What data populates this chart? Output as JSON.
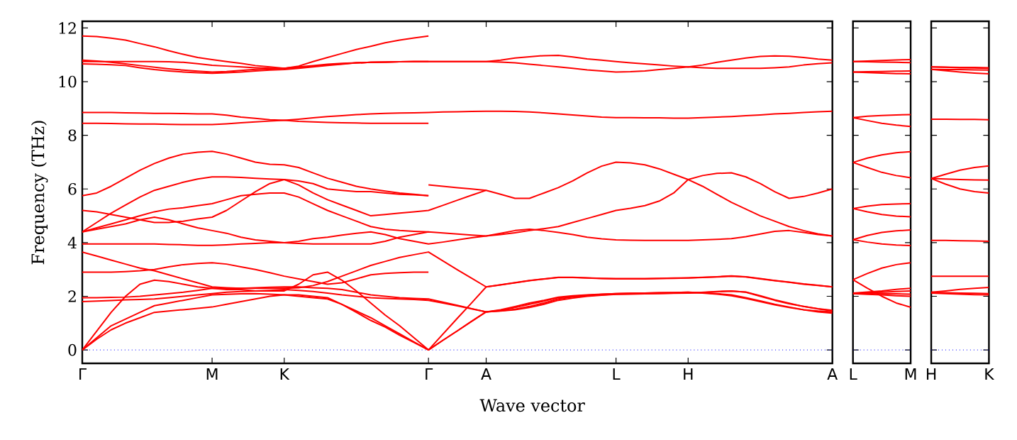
{
  "chart_data": [
    {
      "type": "line",
      "xlabel": "Wave vector",
      "ylabel": "Frequency (THz)",
      "ylim": [
        -0.5,
        12.25
      ],
      "categories": [
        "Γ",
        null,
        null,
        null,
        null,
        null,
        null,
        null,
        null,
        "M",
        null,
        null,
        null,
        null,
        "K",
        null,
        null,
        null,
        null,
        null,
        null,
        null,
        null,
        null,
        "Γ",
        null,
        null,
        null,
        "A",
        null,
        null,
        null,
        null,
        null,
        null,
        null,
        null,
        "L",
        null,
        null,
        null,
        null,
        "H",
        null,
        null,
        null,
        null,
        null,
        null,
        null,
        null,
        null,
        "A"
      ],
      "yticks": [
        0,
        2,
        4,
        6,
        8,
        10,
        12
      ],
      "ref_lines": [
        {
          "axis": "y",
          "value": 0,
          "color": "#0000ff",
          "line_style": "dotted"
        }
      ],
      "series": [
        {
          "color": "#ff0000",
          "values": [
            0,
            0.4,
            0.75,
            1.0,
            1.2,
            1.4,
            1.45,
            1.5,
            1.55,
            1.6,
            1.7,
            1.8,
            1.9,
            2.0,
            2.05,
            2.05,
            2.0,
            1.95,
            1.7,
            1.4,
            1.1,
            0.85,
            0.55,
            0.28,
            0,
            0.36,
            0.71,
            1.07,
            1.42,
            1.5,
            1.62,
            1.75,
            1.85,
            1.97,
            2.02,
            2.05,
            2.08,
            2.1,
            2.11,
            2.12,
            2.13,
            2.14,
            2.15,
            2.12,
            2.08,
            2.02,
            1.92,
            1.8,
            1.68,
            1.58,
            1.5,
            1.45,
            1.42
          ]
        },
        {
          "color": "#ff0000",
          "values": [
            0,
            0.45,
            0.9,
            1.15,
            1.4,
            1.65,
            1.75,
            1.85,
            1.95,
            2.05,
            2.07,
            2.09,
            2.1,
            2.08,
            2.05,
            2.0,
            1.95,
            1.9,
            1.7,
            1.45,
            1.2,
            0.9,
            0.6,
            0.3,
            0,
            0.36,
            0.71,
            1.07,
            1.42,
            1.46,
            1.52,
            1.62,
            1.75,
            1.9,
            1.97,
            2.02,
            2.05,
            2.08,
            2.09,
            2.1,
            2.11,
            2.12,
            2.12,
            2.15,
            2.18,
            2.2,
            2.15,
            2.0,
            1.85,
            1.72,
            1.62,
            1.53,
            1.46
          ]
        },
        {
          "color": "#ff0000",
          "values": [
            0,
            0.7,
            1.4,
            2.0,
            2.45,
            2.6,
            2.55,
            2.45,
            2.35,
            2.3,
            2.25,
            2.25,
            2.2,
            2.2,
            2.2,
            2.45,
            2.8,
            2.9,
            2.6,
            2.2,
            1.75,
            1.3,
            0.9,
            0.45,
            0,
            0.59,
            1.18,
            1.76,
            2.35,
            2.42,
            2.5,
            2.58,
            2.64,
            2.7,
            2.7,
            2.68,
            2.66,
            2.65,
            2.65,
            2.65,
            2.66,
            2.67,
            2.68,
            2.7,
            2.72,
            2.75,
            2.72,
            2.65,
            2.58,
            2.52,
            2.45,
            2.4,
            2.35
          ]
        },
        {
          "color": "#ff0000",
          "values": [
            1.8,
            1.82,
            1.84,
            1.87,
            1.88,
            1.9,
            1.95,
            2.0,
            2.05,
            2.1,
            2.15,
            2.18,
            2.2,
            2.22,
            2.25,
            2.22,
            2.18,
            2.12,
            2.05,
            2.0,
            1.95,
            1.92,
            1.9,
            1.88,
            1.85,
            1.75,
            1.64,
            1.53,
            1.42,
            1.45,
            1.5,
            1.58,
            1.7,
            1.85,
            1.93,
            2.0,
            2.04,
            2.07,
            2.08,
            2.09,
            2.1,
            2.11,
            2.12,
            2.14,
            2.17,
            2.19,
            2.16,
            2.02,
            1.87,
            1.74,
            1.62,
            1.54,
            1.48
          ]
        },
        {
          "color": "#ff0000",
          "values": [
            1.95,
            1.95,
            1.96,
            1.97,
            2.0,
            2.05,
            2.1,
            2.15,
            2.22,
            2.3,
            2.3,
            2.3,
            2.32,
            2.34,
            2.35,
            2.35,
            2.32,
            2.3,
            2.25,
            2.15,
            2.05,
            2.0,
            1.95,
            1.92,
            1.9,
            1.78,
            1.66,
            1.54,
            1.42,
            1.48,
            1.58,
            1.7,
            1.82,
            1.95,
            2.0,
            2.04,
            2.07,
            2.1,
            2.11,
            2.12,
            2.13,
            2.14,
            2.15,
            2.13,
            2.1,
            2.05,
            1.95,
            1.83,
            1.7,
            1.6,
            1.5,
            1.42,
            1.37
          ]
        },
        {
          "color": "#ff0000",
          "values": [
            2.9,
            2.9,
            2.9,
            2.92,
            2.95,
            3.0,
            3.1,
            3.18,
            3.22,
            3.25,
            3.2,
            3.1,
            3.0,
            2.88,
            2.75,
            2.65,
            2.55,
            2.45,
            2.5,
            2.65,
            2.8,
            2.85,
            2.88,
            2.9,
            2.9,
            null,
            null,
            null,
            null,
            null,
            null,
            null,
            null,
            null,
            null,
            null,
            null,
            null,
            null,
            null,
            null,
            null,
            null,
            null,
            null,
            null,
            null,
            null,
            null,
            null,
            null,
            null,
            null
          ]
        },
        {
          "color": "#ff0000",
          "values": [
            3.65,
            3.5,
            3.35,
            3.2,
            3.05,
            2.95,
            2.8,
            2.65,
            2.5,
            2.35,
            2.32,
            2.3,
            2.3,
            2.3,
            2.3,
            2.32,
            2.4,
            2.55,
            2.75,
            2.95,
            3.15,
            3.3,
            3.45,
            3.55,
            3.65,
            3.32,
            2.99,
            2.67,
            2.35,
            2.43,
            2.51,
            2.59,
            2.65,
            2.71,
            2.71,
            2.69,
            2.67,
            2.66,
            2.66,
            2.66,
            2.67,
            2.68,
            2.69,
            2.71,
            2.73,
            2.76,
            2.73,
            2.66,
            2.59,
            2.53,
            2.46,
            2.41,
            2.35
          ]
        },
        {
          "color": "#ff0000",
          "values": [
            3.95,
            3.95,
            3.95,
            3.95,
            3.95,
            3.95,
            3.93,
            3.92,
            3.9,
            3.9,
            3.92,
            3.95,
            3.97,
            4.0,
            4.0,
            4.05,
            4.15,
            4.2,
            4.28,
            4.35,
            4.4,
            4.3,
            4.15,
            4.05,
            3.95,
            4.02,
            4.1,
            4.18,
            4.25,
            4.35,
            4.45,
            4.5,
            4.45,
            4.38,
            4.3,
            4.2,
            4.14,
            4.1,
            4.09,
            4.08,
            4.08,
            4.08,
            4.08,
            4.1,
            4.12,
            4.15,
            4.22,
            4.32,
            4.42,
            4.45,
            4.38,
            4.3,
            4.25
          ]
        },
        {
          "color": "#ff0000",
          "values": [
            4.4,
            4.5,
            4.6,
            4.7,
            4.85,
            4.95,
            4.85,
            4.7,
            4.55,
            4.45,
            4.35,
            4.2,
            4.1,
            4.05,
            4.0,
            3.97,
            3.95,
            3.95,
            3.95,
            3.95,
            3.95,
            4.05,
            4.2,
            4.3,
            4.4,
            4.36,
            4.32,
            4.28,
            4.25,
            4.3,
            4.37,
            4.45,
            4.52,
            4.6,
            4.75,
            4.9,
            5.05,
            5.2,
            5.28,
            5.38,
            5.55,
            5.85,
            6.35,
            6.5,
            6.58,
            6.6,
            6.45,
            6.2,
            5.9,
            5.65,
            5.72,
            5.85,
            6.0
          ]
        },
        {
          "color": "#ff0000",
          "values": [
            4.4,
            4.55,
            4.7,
            4.85,
            5.0,
            5.15,
            5.25,
            5.3,
            5.38,
            5.45,
            5.6,
            5.75,
            5.8,
            5.85,
            5.85,
            5.7,
            5.45,
            5.2,
            5.0,
            4.8,
            4.6,
            4.5,
            4.45,
            4.42,
            4.4,
            null,
            null,
            null,
            null,
            null,
            null,
            null,
            null,
            null,
            null,
            null,
            null,
            null,
            null,
            null,
            null,
            null,
            null,
            null,
            null,
            null,
            null,
            null,
            null,
            null,
            null,
            null,
            null
          ]
        },
        {
          "color": "#ff0000",
          "values": [
            5.2,
            5.15,
            5.05,
            4.95,
            4.85,
            4.75,
            4.75,
            4.8,
            4.88,
            4.95,
            5.2,
            5.55,
            5.9,
            6.2,
            6.35,
            6.15,
            5.85,
            5.6,
            5.4,
            5.2,
            5.0,
            5.05,
            5.1,
            5.15,
            5.2,
            5.39,
            5.58,
            5.77,
            5.95,
            5.8,
            5.65,
            5.65,
            5.85,
            6.05,
            6.3,
            6.6,
            6.85,
            7.0,
            6.97,
            6.9,
            6.75,
            6.55,
            6.35,
            6.1,
            5.8,
            5.5,
            5.25,
            5.0,
            4.8,
            4.6,
            4.45,
            4.33,
            4.25
          ]
        },
        {
          "color": "#ff0000",
          "values": [
            4.4,
            4.75,
            5.1,
            5.4,
            5.7,
            5.95,
            6.1,
            6.25,
            6.37,
            6.45,
            6.45,
            6.43,
            6.4,
            6.37,
            6.35,
            6.3,
            6.2,
            6.0,
            5.95,
            5.9,
            5.9,
            5.85,
            5.8,
            5.78,
            5.75,
            null,
            null,
            null,
            null,
            null,
            null,
            null,
            null,
            null,
            null,
            null,
            null,
            null,
            null,
            null,
            null,
            null,
            null,
            null,
            null,
            null,
            null,
            null,
            null,
            null,
            null,
            null,
            null
          ]
        },
        {
          "color": "#ff0000",
          "values": [
            5.75,
            5.85,
            6.1,
            6.4,
            6.7,
            6.95,
            7.15,
            7.3,
            7.37,
            7.4,
            7.3,
            7.15,
            7.0,
            6.92,
            6.9,
            6.8,
            6.6,
            6.4,
            6.25,
            6.1,
            6.0,
            5.92,
            5.85,
            5.8,
            5.75,
            null,
            null,
            null,
            null,
            null,
            null,
            null,
            null,
            null,
            null,
            null,
            null,
            null,
            null,
            null,
            null,
            null,
            null,
            null,
            null,
            null,
            null,
            null,
            null,
            null,
            null,
            null,
            null
          ]
        },
        {
          "color": "#ff0000",
          "values": [
            null,
            null,
            null,
            null,
            null,
            null,
            null,
            null,
            null,
            null,
            null,
            null,
            null,
            null,
            null,
            null,
            null,
            null,
            null,
            null,
            null,
            null,
            null,
            null,
            6.15,
            6.1,
            6.05,
            6.0,
            5.95,
            null,
            null,
            null,
            null,
            null,
            null,
            null,
            null,
            null,
            null,
            null,
            null,
            null,
            null,
            null,
            null,
            null,
            null,
            null,
            null,
            null,
            null,
            null,
            null
          ]
        },
        {
          "color": "#ff0000",
          "values": [
            8.45,
            8.45,
            8.44,
            8.43,
            8.42,
            8.42,
            8.41,
            8.4,
            8.4,
            8.4,
            8.43,
            8.47,
            8.5,
            8.53,
            8.56,
            8.6,
            8.65,
            8.7,
            8.73,
            8.77,
            8.8,
            8.82,
            8.83,
            8.84,
            8.85,
            8.87,
            8.88,
            8.89,
            8.9,
            8.9,
            8.89,
            8.87,
            8.84,
            8.8,
            8.76,
            8.72,
            8.68,
            8.66,
            8.66,
            8.65,
            8.65,
            8.64,
            8.64,
            8.66,
            8.68,
            8.7,
            8.73,
            8.76,
            8.8,
            8.82,
            8.85,
            8.88,
            8.9
          ]
        },
        {
          "color": "#ff0000",
          "values": [
            8.85,
            8.85,
            8.85,
            8.84,
            8.83,
            8.82,
            8.82,
            8.81,
            8.8,
            8.8,
            8.75,
            8.68,
            8.63,
            8.58,
            8.56,
            8.52,
            8.5,
            8.48,
            8.47,
            8.46,
            8.45,
            8.45,
            8.45,
            8.45,
            8.45,
            null,
            null,
            null,
            null,
            null,
            null,
            null,
            null,
            null,
            null,
            null,
            null,
            null,
            null,
            null,
            null,
            null,
            null,
            null,
            null,
            null,
            null,
            null,
            null,
            null,
            null,
            null,
            null
          ]
        },
        {
          "color": "#ff0000",
          "values": [
            10.66,
            10.65,
            10.63,
            10.6,
            10.52,
            10.45,
            10.4,
            10.36,
            10.33,
            10.31,
            10.33,
            10.36,
            10.4,
            10.43,
            10.45,
            10.5,
            10.55,
            10.6,
            10.65,
            10.7,
            10.72,
            10.73,
            10.74,
            10.75,
            10.75,
            10.75,
            10.75,
            10.75,
            10.75,
            10.73,
            10.7,
            10.65,
            10.6,
            10.55,
            10.5,
            10.44,
            10.4,
            10.36,
            10.37,
            10.4,
            10.45,
            10.5,
            10.55,
            10.52,
            10.5,
            10.5,
            10.5,
            10.5,
            10.52,
            10.55,
            10.62,
            10.67,
            10.7
          ]
        },
        {
          "color": "#ff0000",
          "values": [
            10.8,
            10.77,
            10.72,
            10.66,
            10.6,
            10.54,
            10.48,
            10.43,
            10.39,
            10.36,
            10.38,
            10.42,
            10.46,
            10.48,
            10.5,
            10.54,
            10.58,
            10.62,
            10.66,
            10.7,
            10.72,
            10.73,
            10.74,
            10.75,
            10.75,
            10.75,
            10.75,
            10.75,
            10.75,
            10.8,
            10.88,
            10.93,
            10.97,
            10.98,
            10.92,
            10.85,
            10.8,
            10.75,
            10.7,
            10.66,
            10.62,
            10.58,
            10.55,
            10.62,
            10.72,
            10.8,
            10.88,
            10.94,
            10.96,
            10.95,
            10.9,
            10.84,
            10.8
          ]
        },
        {
          "color": "#ff0000",
          "values": [
            10.75,
            10.75,
            10.75,
            10.75,
            10.75,
            10.75,
            10.74,
            10.72,
            10.67,
            10.61,
            10.58,
            10.55,
            10.52,
            10.5,
            10.5,
            10.58,
            10.75,
            10.9,
            11.05,
            11.2,
            11.32,
            11.45,
            11.55,
            11.63,
            11.7,
            null,
            null,
            null,
            null,
            null,
            null,
            null,
            null,
            null,
            null,
            null,
            null,
            null,
            null,
            null,
            null,
            null,
            null,
            null,
            null,
            null,
            null,
            null,
            null,
            null,
            null,
            null,
            null
          ]
        },
        {
          "color": "#ff0000",
          "values": [
            11.7,
            11.68,
            11.62,
            11.55,
            11.42,
            11.3,
            11.15,
            11.02,
            10.9,
            10.82,
            10.75,
            10.68,
            10.6,
            10.55,
            10.5,
            10.55,
            10.6,
            10.65,
            10.68,
            10.7,
            10.72,
            10.73,
            10.74,
            10.75,
            10.75,
            null,
            null,
            null,
            null,
            null,
            null,
            null,
            null,
            null,
            null,
            null,
            null,
            null,
            null,
            null,
            null,
            null,
            null,
            null,
            null,
            null,
            null,
            null,
            null,
            null,
            null,
            null,
            null
          ]
        }
      ]
    },
    {
      "type": "line",
      "ylim": [
        -0.5,
        12.25
      ],
      "tick_labels": "x",
      "categories": [
        "L",
        null,
        null,
        null,
        "M"
      ],
      "yticks": [
        0,
        2,
        4,
        6,
        8,
        10,
        12
      ],
      "ref_lines": [
        {
          "axis": "y",
          "value": 0,
          "color": "#0000ff",
          "line_style": "dotted"
        }
      ],
      "series": [
        {
          "color": "#ff0000",
          "values": [
            10.75,
            10.77,
            10.79,
            10.81,
            10.82
          ]
        },
        {
          "color": "#ff0000",
          "values": [
            10.75,
            10.74,
            10.73,
            10.72,
            10.71
          ]
        },
        {
          "color": "#ff0000",
          "values": [
            10.36,
            10.37,
            10.38,
            10.39,
            10.4
          ]
        },
        {
          "color": "#ff0000",
          "values": [
            10.36,
            10.34,
            10.32,
            10.3,
            10.29
          ]
        },
        {
          "color": "#ff0000",
          "values": [
            8.66,
            8.71,
            8.74,
            8.76,
            8.77
          ]
        },
        {
          "color": "#ff0000",
          "values": [
            8.66,
            8.55,
            8.45,
            8.38,
            8.33
          ]
        },
        {
          "color": "#ff0000",
          "values": [
            6.99,
            7.15,
            7.27,
            7.35,
            7.39
          ]
        },
        {
          "color": "#ff0000",
          "values": [
            6.99,
            6.8,
            6.62,
            6.5,
            6.42
          ]
        },
        {
          "color": "#ff0000",
          "values": [
            5.27,
            5.36,
            5.42,
            5.44,
            5.45
          ]
        },
        {
          "color": "#ff0000",
          "values": [
            5.27,
            5.15,
            5.05,
            4.99,
            4.96
          ]
        },
        {
          "color": "#ff0000",
          "values": [
            4.11,
            4.27,
            4.38,
            4.44,
            4.47
          ]
        },
        {
          "color": "#ff0000",
          "values": [
            4.11,
            4.02,
            3.95,
            3.91,
            3.89
          ]
        },
        {
          "color": "#ff0000",
          "values": [
            2.62,
            2.85,
            3.05,
            3.18,
            3.25
          ]
        },
        {
          "color": "#ff0000",
          "values": [
            2.62,
            2.3,
            2.0,
            1.75,
            1.59
          ]
        },
        {
          "color": "#ff0000",
          "values": [
            2.12,
            2.16,
            2.2,
            2.26,
            2.3
          ]
        },
        {
          "color": "#ff0000",
          "values": [
            2.12,
            2.11,
            2.1,
            2.09,
            2.08
          ]
        },
        {
          "color": "#ff0000",
          "values": [
            2.1,
            2.13,
            2.15,
            2.18,
            2.2
          ]
        },
        {
          "color": "#ff0000",
          "values": [
            2.1,
            2.07,
            2.05,
            2.02,
            2.0
          ]
        }
      ]
    },
    {
      "type": "line",
      "ylim": [
        -0.5,
        12.25
      ],
      "tick_labels": "x",
      "categories": [
        "H",
        null,
        null,
        null,
        "K"
      ],
      "yticks": [
        0,
        2,
        4,
        6,
        8,
        10,
        12
      ],
      "ref_lines": [
        {
          "axis": "y",
          "value": 0,
          "color": "#0000ff",
          "line_style": "dotted"
        }
      ],
      "series": [
        {
          "color": "#ff0000",
          "values": [
            10.55,
            10.54,
            10.52,
            10.51,
            10.5
          ]
        },
        {
          "color": "#ff0000",
          "values": [
            10.55,
            10.54,
            10.53,
            10.53,
            10.52
          ]
        },
        {
          "color": "#ff0000",
          "values": [
            10.46,
            10.45,
            10.45,
            10.44,
            10.43
          ]
        },
        {
          "color": "#ff0000",
          "values": [
            10.46,
            10.41,
            10.36,
            10.32,
            10.29
          ]
        },
        {
          "color": "#ff0000",
          "values": [
            8.6,
            8.6,
            8.59,
            8.59,
            8.58
          ]
        },
        {
          "color": "#ff0000",
          "values": [
            6.39,
            6.55,
            6.7,
            6.8,
            6.86
          ]
        },
        {
          "color": "#ff0000",
          "values": [
            6.39,
            6.37,
            6.35,
            6.34,
            6.33
          ]
        },
        {
          "color": "#ff0000",
          "values": [
            6.39,
            6.18,
            6.0,
            5.9,
            5.85
          ]
        },
        {
          "color": "#ff0000",
          "values": [
            4.08,
            4.08,
            4.07,
            4.06,
            4.05
          ]
        },
        {
          "color": "#ff0000",
          "values": [
            2.75,
            2.75,
            2.75,
            2.75,
            2.75
          ]
        },
        {
          "color": "#ff0000",
          "values": [
            2.15,
            2.2,
            2.26,
            2.3,
            2.33
          ]
        },
        {
          "color": "#ff0000",
          "values": [
            2.15,
            2.13,
            2.12,
            2.11,
            2.1
          ]
        },
        {
          "color": "#ff0000",
          "values": [
            2.12,
            2.1,
            2.08,
            2.06,
            2.05
          ]
        }
      ]
    }
  ]
}
